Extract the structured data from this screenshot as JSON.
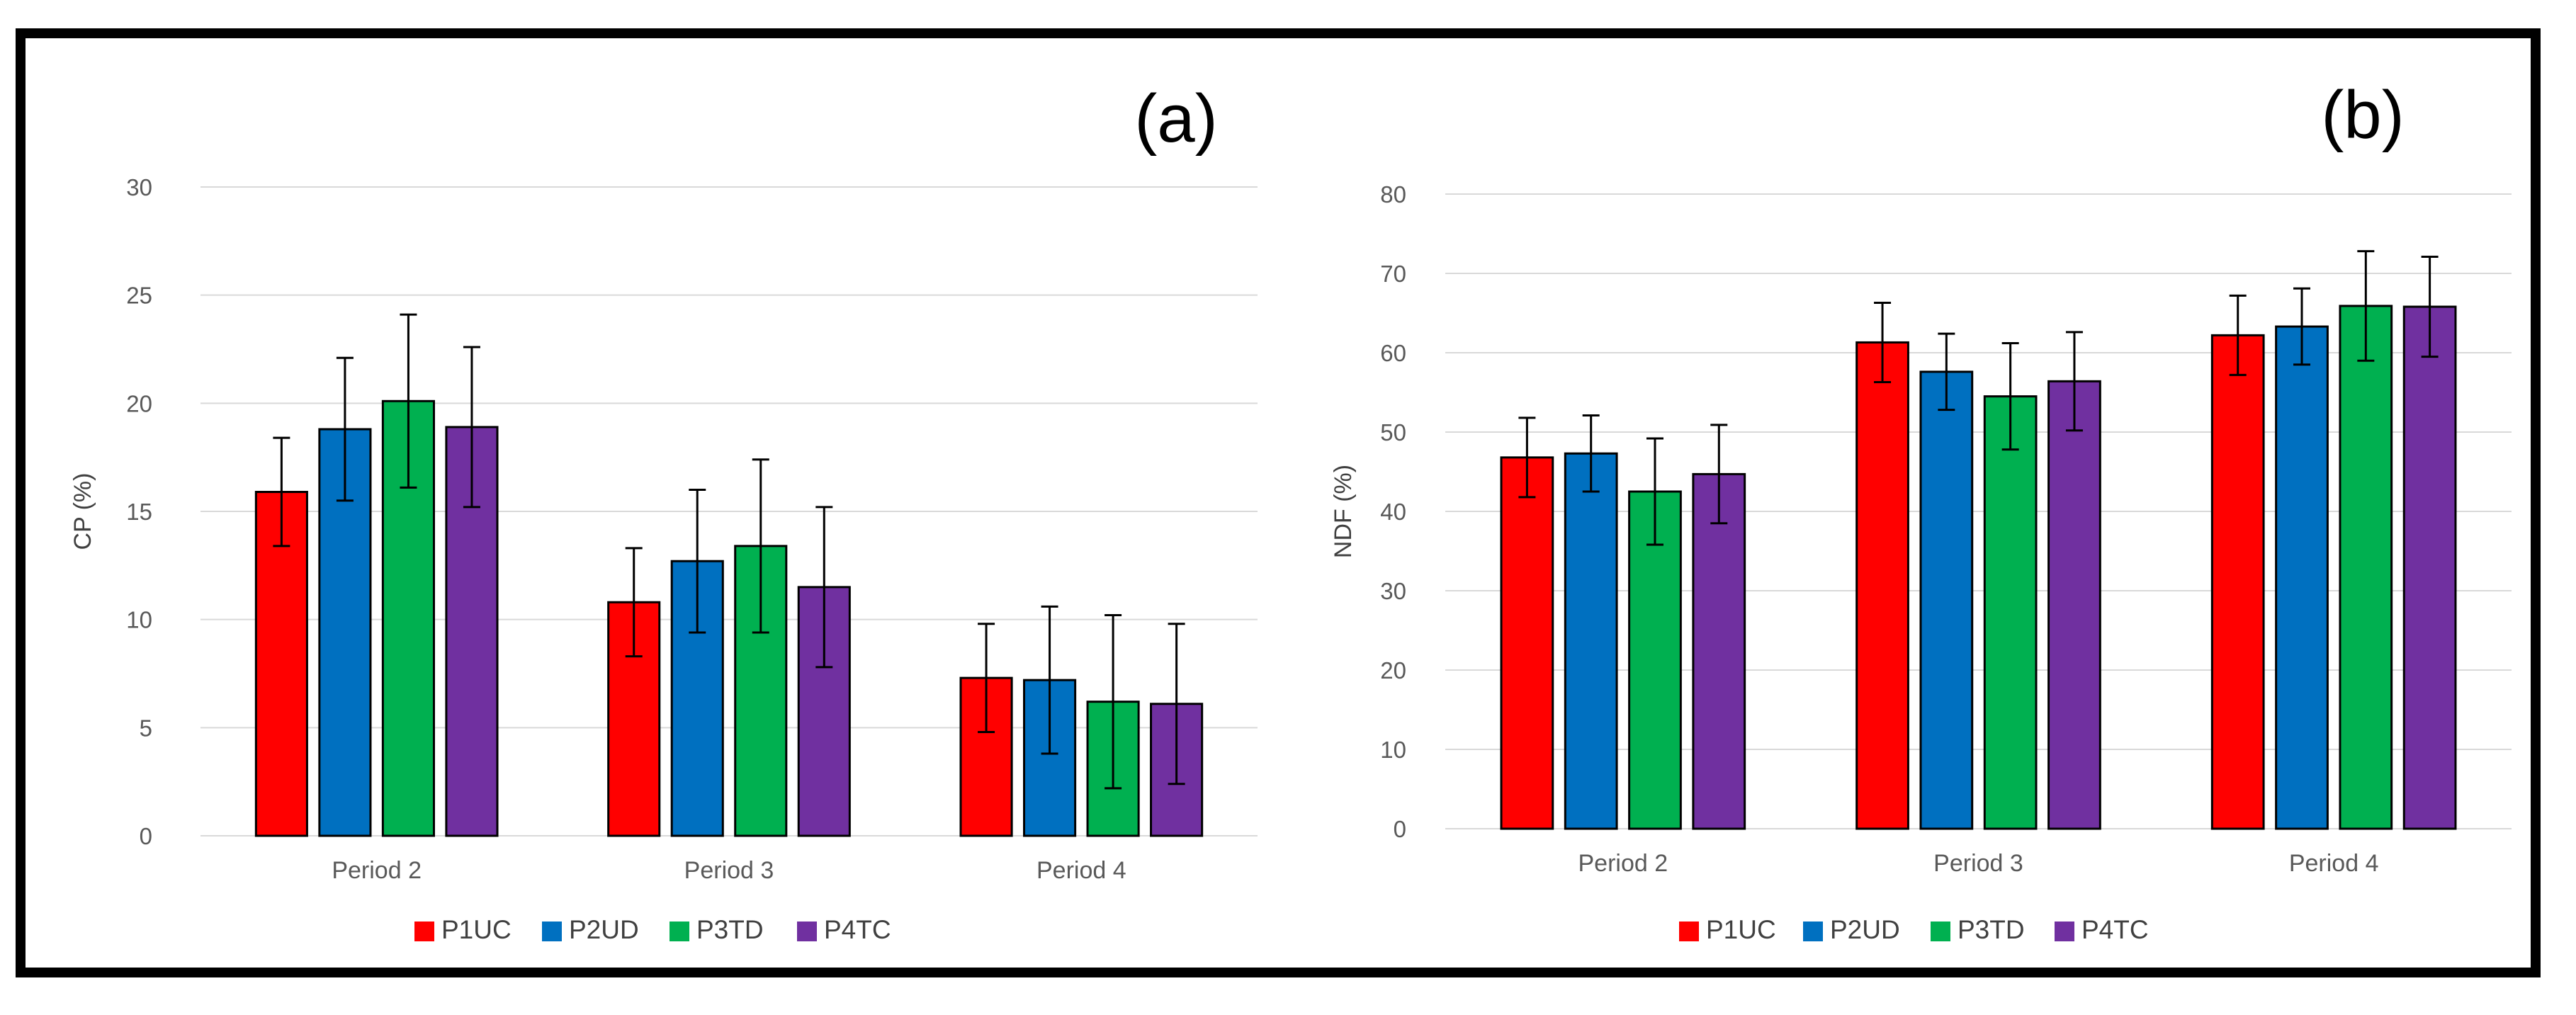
{
  "colors": {
    "P1UC": "#ff0000",
    "P2UD": "#0070c0",
    "P3TD": "#00b050",
    "P4TC": "#7030a0"
  },
  "chart_data": [
    {
      "type": "bar",
      "panel_label": "(a)",
      "title": "",
      "xlabel": "",
      "ylabel": "CP (%)",
      "ylim": [
        0,
        30
      ],
      "yticks": [
        0,
        5,
        10,
        15,
        20,
        25,
        30
      ],
      "grid": true,
      "legend_position": "bottom",
      "categories": [
        "Period 2",
        "Period 3",
        "Period 4"
      ],
      "series": [
        {
          "name": "P1UC",
          "values": [
            15.9,
            10.8,
            7.3
          ],
          "errors": [
            2.5,
            2.5,
            2.5
          ]
        },
        {
          "name": "P2UD",
          "values": [
            18.8,
            12.7,
            7.2
          ],
          "errors": [
            3.3,
            3.3,
            3.4
          ]
        },
        {
          "name": "P3TD",
          "values": [
            20.1,
            13.4,
            6.2
          ],
          "errors": [
            4.0,
            4.0,
            4.0
          ]
        },
        {
          "name": "P4TC",
          "values": [
            18.9,
            11.5,
            6.1
          ],
          "errors": [
            3.7,
            3.7,
            3.7
          ]
        }
      ]
    },
    {
      "type": "bar",
      "panel_label": "(b)",
      "title": "",
      "xlabel": "",
      "ylabel": "NDF (%)",
      "ylim": [
        0,
        80
      ],
      "yticks": [
        0,
        10,
        20,
        30,
        40,
        50,
        60,
        70,
        80
      ],
      "grid": true,
      "legend_position": "bottom",
      "categories": [
        "Period 2",
        "Period 3",
        "Period 4"
      ],
      "series": [
        {
          "name": "P1UC",
          "values": [
            46.8,
            61.3,
            62.2
          ],
          "errors": [
            5.0,
            5.0,
            5.0
          ]
        },
        {
          "name": "P2UD",
          "values": [
            47.3,
            57.6,
            63.3
          ],
          "errors": [
            4.8,
            4.8,
            4.8
          ]
        },
        {
          "name": "P3TD",
          "values": [
            42.5,
            54.5,
            65.9
          ],
          "errors": [
            6.7,
            6.7,
            6.9
          ]
        },
        {
          "name": "P4TC",
          "values": [
            44.7,
            56.4,
            65.8
          ],
          "errors": [
            6.2,
            6.2,
            6.3
          ]
        }
      ]
    }
  ]
}
